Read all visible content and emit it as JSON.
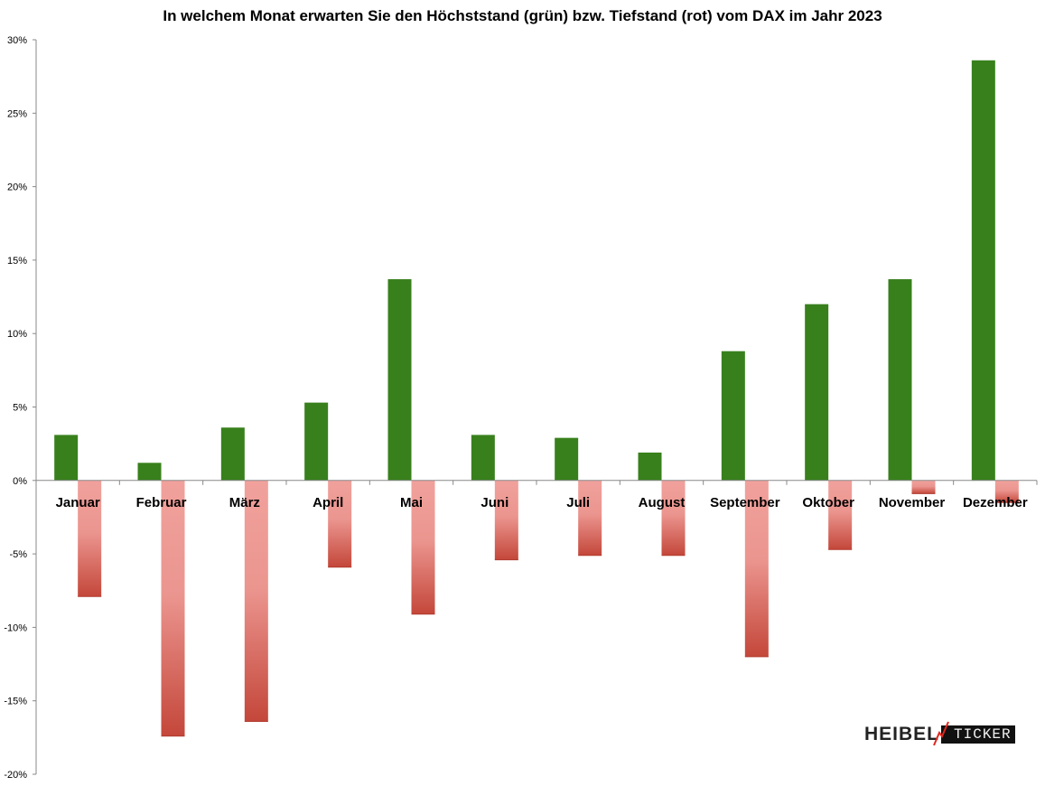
{
  "chart_data": {
    "type": "bar",
    "title": "In welchem Monat erwarten Sie den Höchststand (grün) bzw. Tiefstand (rot) vom DAX im Jahr 2023",
    "categories": [
      "Januar",
      "Februar",
      "März",
      "April",
      "Mai",
      "Juni",
      "Juli",
      "August",
      "September",
      "Oktober",
      "November",
      "Dezember"
    ],
    "series": [
      {
        "color": "#38801c",
        "values": [
          3.1,
          1.2,
          3.6,
          5.3,
          13.7,
          3.1,
          2.9,
          1.9,
          8.8,
          12.0,
          13.7,
          28.6
        ]
      },
      {
        "color": "#c0392b",
        "color_light": "#f1a19c",
        "values": [
          -7.9,
          -17.4,
          -16.4,
          -5.9,
          -9.1,
          -5.4,
          -5.1,
          -5.1,
          -12.0,
          -4.7,
          -0.9,
          -1.5
        ]
      }
    ],
    "ylim": [
      -20,
      30
    ],
    "yticks": [
      -20,
      -15,
      -10,
      -5,
      0,
      5,
      10,
      15,
      20,
      25,
      30
    ],
    "ytick_labels": [
      "-20%",
      "-15%",
      "-10%",
      "-5%",
      "0%",
      "5%",
      "10%",
      "15%",
      "20%",
      "25%",
      "30%"
    ],
    "grid": false,
    "legend": "none"
  },
  "logo": {
    "left_text": "HEIBEL",
    "right_text": "TICKER"
  }
}
